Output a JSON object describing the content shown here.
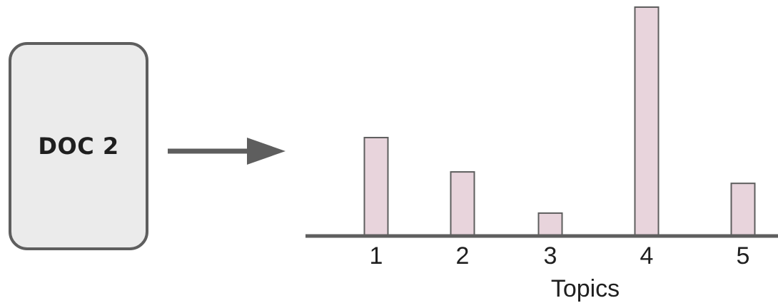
{
  "document": {
    "label": "DOC 2"
  },
  "colors": {
    "box_fill": "#ebebeb",
    "box_border": "#5e5e5e",
    "arrow": "#5e5e5e",
    "bar_fill": "#e8d4dc",
    "bar_border": "#5e5e5e",
    "axis": "#5e5e5e",
    "text": "#1f1f1f"
  },
  "arrow": {
    "icon": "arrow-right-icon"
  },
  "chart_data": {
    "type": "bar",
    "categories": [
      "1",
      "2",
      "3",
      "4",
      "5"
    ],
    "values": [
      0.43,
      0.28,
      0.1,
      1.0,
      0.23
    ],
    "xlabel": "Topics",
    "ylabel": "",
    "ylim": [
      0,
      1.0
    ],
    "grid": false
  }
}
